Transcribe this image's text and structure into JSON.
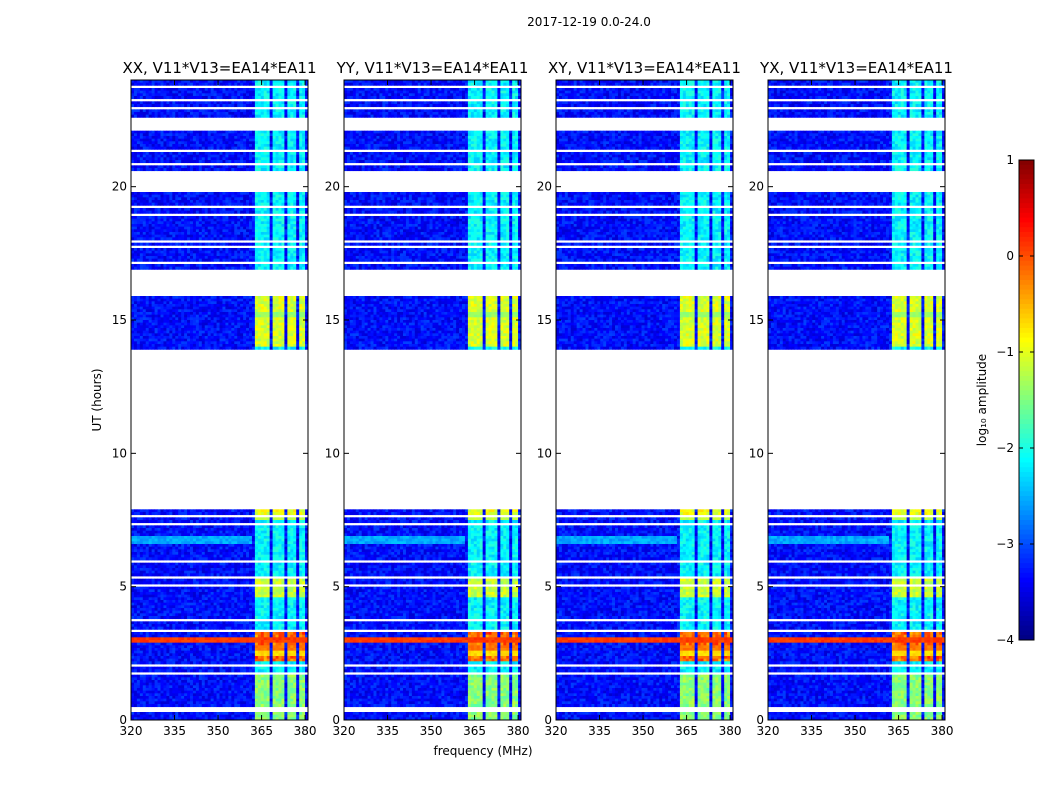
{
  "figure": {
    "suptitle": "2017-12-19 0.0-24.0",
    "xlabel": "frequency (MHz)",
    "ylabel": "UT (hours)"
  },
  "chart_data": {
    "type": "heatmap",
    "xlim": [
      320,
      381
    ],
    "ylim": [
      0,
      24
    ],
    "xticks": [
      320,
      335,
      350,
      365,
      380
    ],
    "yticks": [
      0,
      5,
      10,
      15,
      20
    ],
    "xtick_labels": [
      "320",
      "335",
      "350",
      "365",
      "380"
    ],
    "ytick_labels": [
      "0",
      "5",
      "10",
      "15",
      "20"
    ],
    "panels": [
      {
        "title": "XX, V11*V13=EA14*EA11"
      },
      {
        "title": "YY, V11*V13=EA14*EA11"
      },
      {
        "title": "XY, V11*V13=EA14*EA11"
      },
      {
        "title": "YX, V11*V13=EA14*EA11"
      }
    ],
    "data_gaps_ut": [
      [
        0.35,
        0.45
      ],
      [
        1.75,
        1.85
      ],
      [
        2.0,
        2.1
      ],
      [
        3.3,
        3.4
      ],
      [
        3.75,
        3.8
      ],
      [
        4.5,
        4.55
      ],
      [
        5.05,
        5.1
      ],
      [
        5.35,
        5.4
      ],
      [
        5.95,
        6.0
      ],
      [
        6.55,
        6.6
      ],
      [
        7.0,
        7.05
      ],
      [
        7.35,
        7.4
      ],
      [
        7.6,
        7.65
      ],
      [
        7.9,
        13.9
      ],
      [
        14.55,
        14.6
      ],
      [
        14.9,
        14.95
      ],
      [
        15.95,
        16.95
      ],
      [
        17.15,
        17.25
      ],
      [
        17.75,
        17.8
      ],
      [
        17.95,
        18.0
      ],
      [
        18.5,
        18.55
      ],
      [
        18.95,
        19.0
      ],
      [
        19.25,
        19.35
      ],
      [
        19.8,
        20.55
      ],
      [
        20.85,
        20.9
      ],
      [
        21.3,
        21.35
      ],
      [
        21.6,
        21.65
      ],
      [
        22.05,
        22.65
      ],
      [
        22.95,
        23.05
      ],
      [
        23.25,
        23.35
      ],
      [
        23.75,
        23.8
      ]
    ],
    "rfi_bands_mhz": [
      [
        363,
        367.5
      ],
      [
        369,
        372.5
      ],
      [
        374,
        376.5
      ],
      [
        377.5,
        380
      ]
    ],
    "bright_rows_ut": [
      {
        "ut": 3.0,
        "log_amp": 0.0,
        "full_width": true
      },
      {
        "ut": 2.7,
        "log_amp": -0.3,
        "full_width": false
      },
      {
        "ut": 2.5,
        "log_amp": -0.8,
        "full_width": false
      },
      {
        "ut": 7.6,
        "log_amp": -1.3,
        "full_width": false
      },
      {
        "ut": 15.2,
        "log_amp": -1.5,
        "full_width": false
      }
    ],
    "colorbar": {
      "label": "log₁₀ amplitude",
      "range": [
        -4,
        1
      ],
      "ticks": [
        1,
        0,
        -1,
        -2,
        -3,
        -4
      ],
      "tick_labels": [
        "1",
        "0",
        "−1",
        "−2",
        "−3",
        "−4"
      ],
      "colormap": "jet"
    }
  }
}
